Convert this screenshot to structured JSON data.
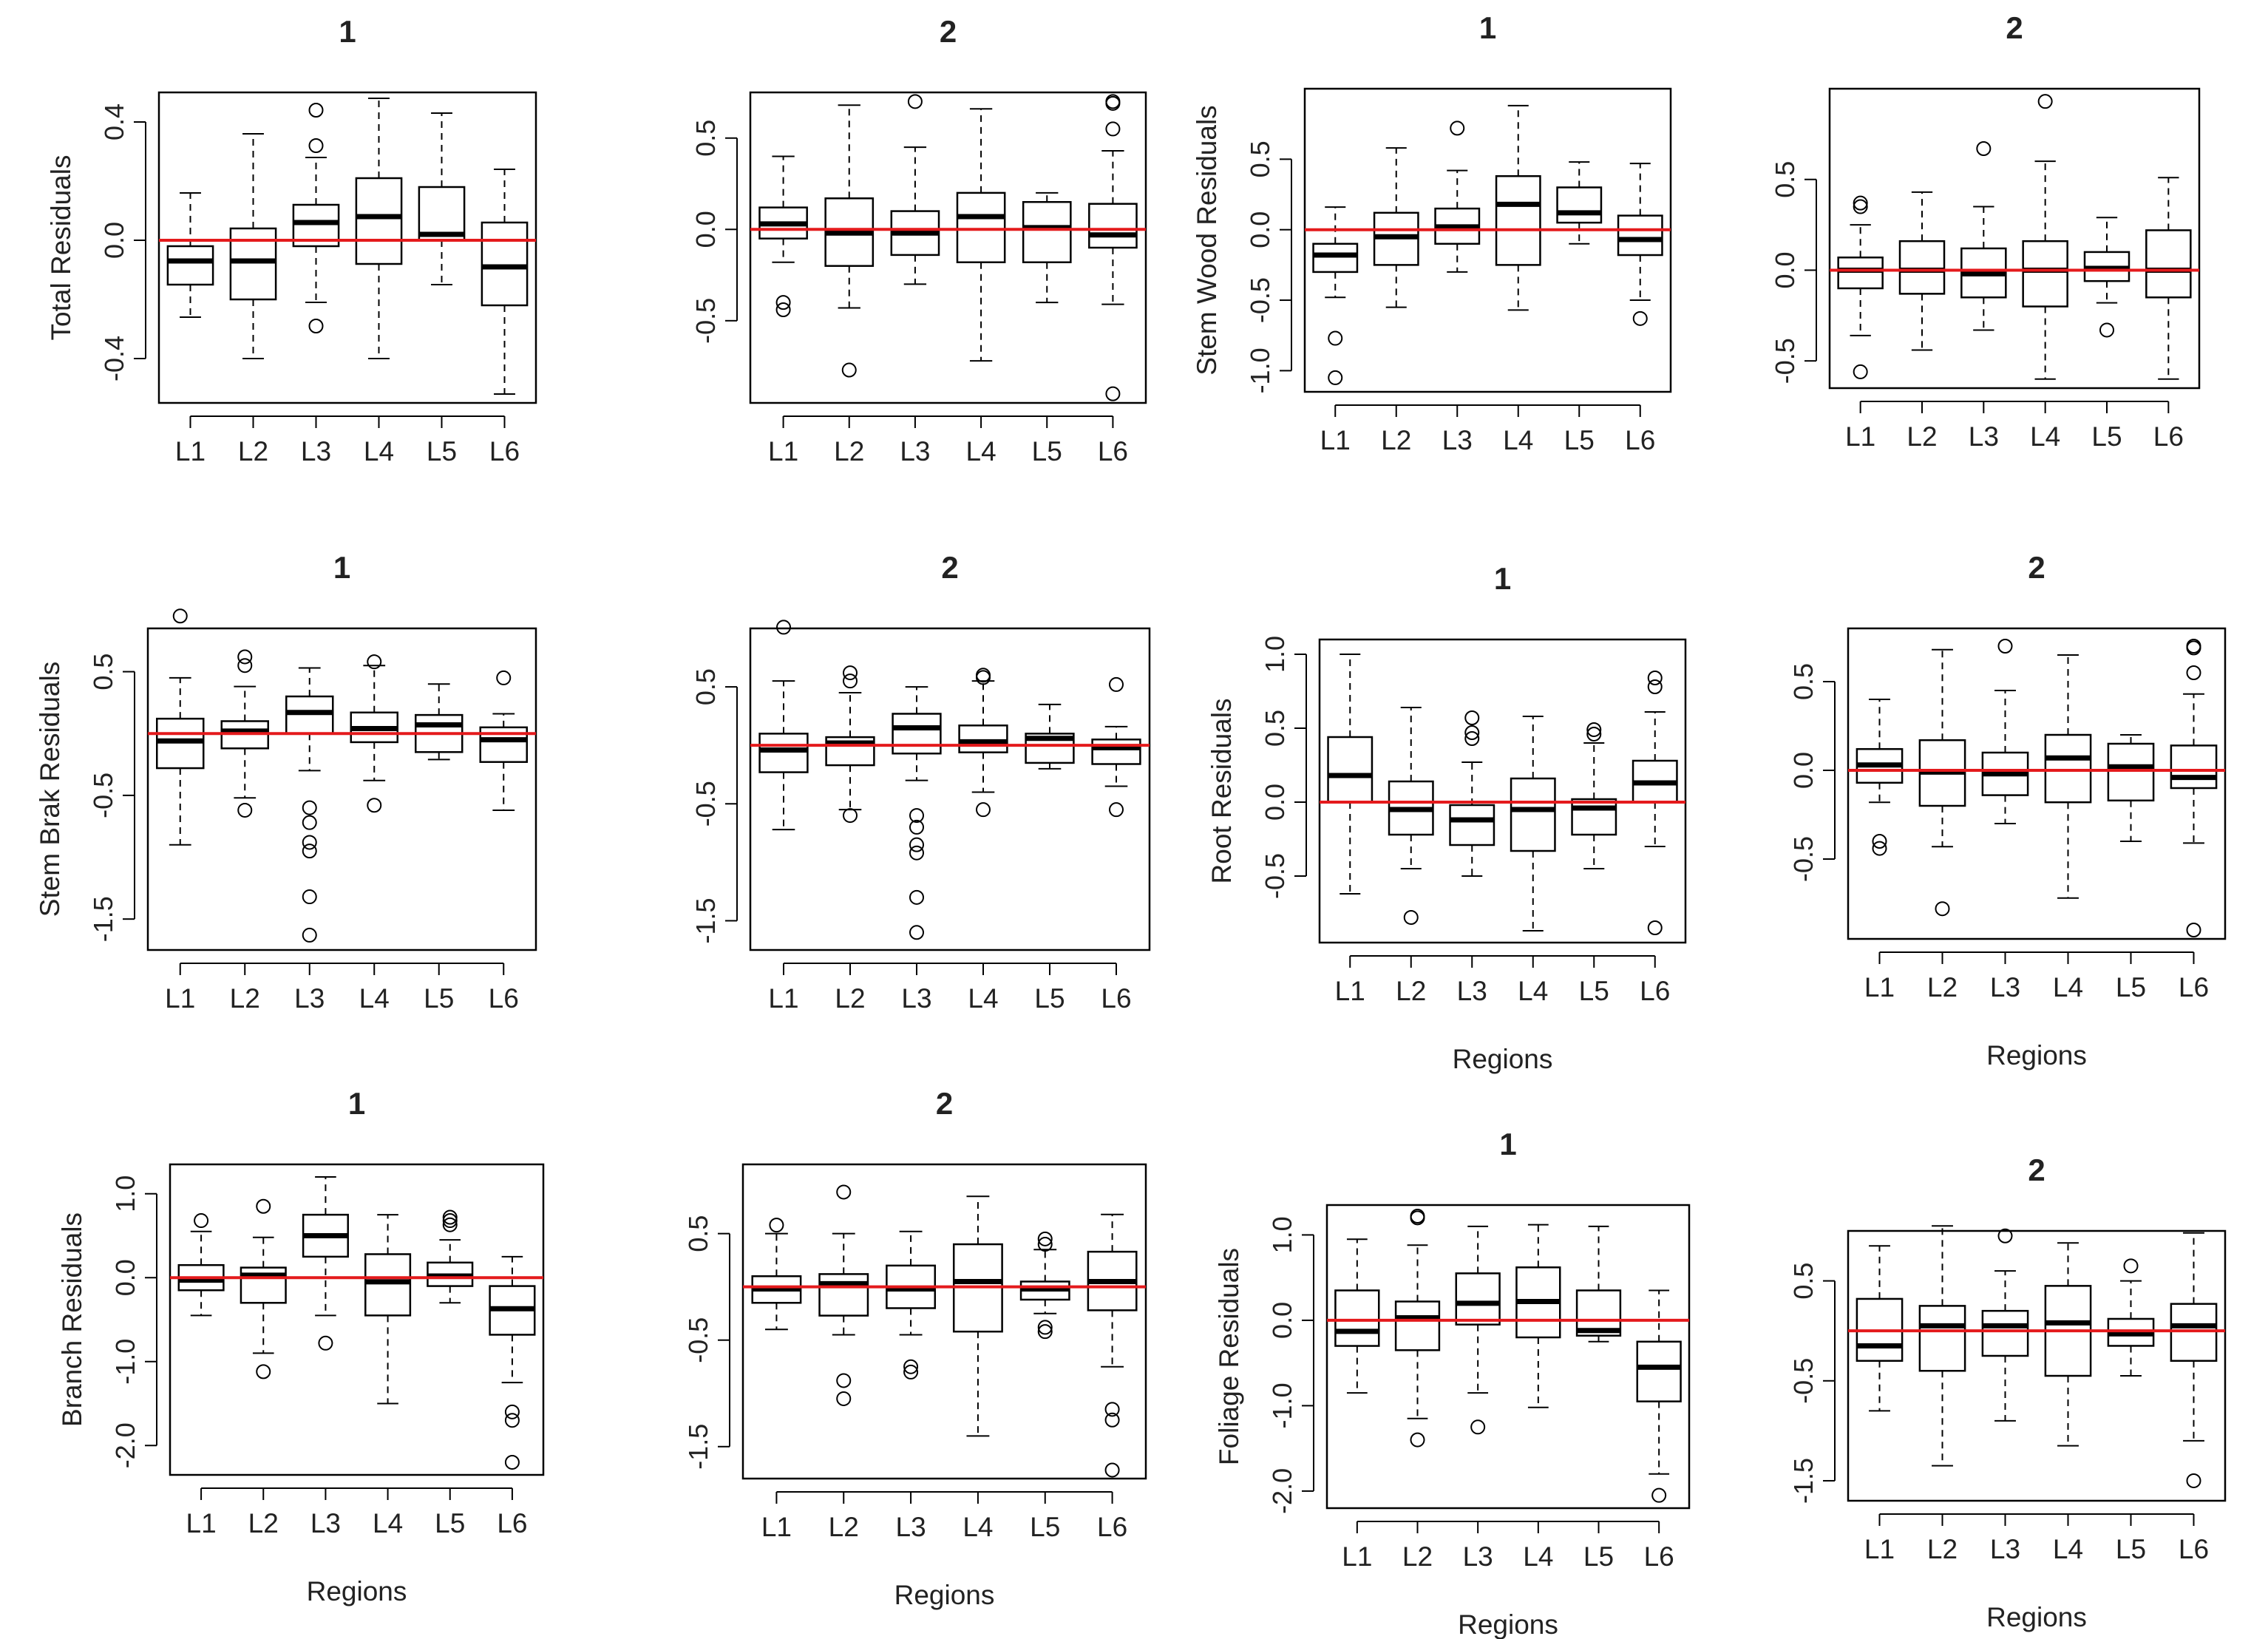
{
  "figure": {
    "background": "#ffffff",
    "box_color": "#000000",
    "reference_line_color": "#e41a1c"
  },
  "chart_data": [
    {
      "type": "boxplot",
      "title": "1",
      "xlabel": "",
      "ylabel": "Total Residuals",
      "ylim": [
        -0.55,
        0.5
      ],
      "yticks": [
        -0.4,
        0.0,
        0.4
      ],
      "yticklabels": [
        "-0.4",
        "0.0",
        "0.4"
      ],
      "reference_line": 0,
      "categories": [
        "L1",
        "L2",
        "L3",
        "L4",
        "L5",
        "L6"
      ],
      "boxes": [
        {
          "min": -0.26,
          "q1": -0.15,
          "median": -0.07,
          "q3": -0.02,
          "max": 0.16,
          "outliers": []
        },
        {
          "min": -0.4,
          "q1": -0.2,
          "median": -0.07,
          "q3": 0.04,
          "max": 0.36,
          "outliers": []
        },
        {
          "min": -0.21,
          "q1": -0.02,
          "median": 0.06,
          "q3": 0.12,
          "max": 0.28,
          "outliers": [
            -0.29,
            0.32,
            0.44
          ]
        },
        {
          "min": -0.4,
          "q1": -0.08,
          "median": 0.08,
          "q3": 0.21,
          "max": 0.48,
          "outliers": []
        },
        {
          "min": -0.15,
          "q1": 0.0,
          "median": 0.02,
          "q3": 0.18,
          "max": 0.43,
          "outliers": []
        },
        {
          "min": -0.52,
          "q1": -0.22,
          "median": -0.09,
          "q3": 0.06,
          "max": 0.24,
          "outliers": []
        }
      ]
    },
    {
      "type": "boxplot",
      "title": "2",
      "xlabel": "",
      "ylabel": "",
      "ylim": [
        -0.95,
        0.75
      ],
      "yticks": [
        -0.5,
        0.0,
        0.5
      ],
      "yticklabels": [
        "-0.5",
        "0.0",
        "0.5"
      ],
      "reference_line": 0,
      "categories": [
        "L1",
        "L2",
        "L3",
        "L4",
        "L5",
        "L6"
      ],
      "boxes": [
        {
          "min": -0.18,
          "q1": -0.05,
          "median": 0.03,
          "q3": 0.12,
          "max": 0.4,
          "outliers": [
            -0.4,
            -0.44
          ]
        },
        {
          "min": -0.43,
          "q1": -0.2,
          "median": -0.02,
          "q3": 0.17,
          "max": 0.68,
          "outliers": [
            -0.77
          ]
        },
        {
          "min": -0.3,
          "q1": -0.14,
          "median": -0.02,
          "q3": 0.1,
          "max": 0.45,
          "outliers": [
            0.7
          ]
        },
        {
          "min": -0.72,
          "q1": -0.18,
          "median": 0.07,
          "q3": 0.2,
          "max": 0.66,
          "outliers": []
        },
        {
          "min": -0.4,
          "q1": -0.18,
          "median": 0.01,
          "q3": 0.15,
          "max": 0.2,
          "outliers": []
        },
        {
          "min": -0.41,
          "q1": -0.1,
          "median": -0.03,
          "q3": 0.14,
          "max": 0.43,
          "outliers": [
            -0.9,
            0.55,
            0.69,
            0.7
          ]
        }
      ]
    },
    {
      "type": "boxplot",
      "title": "1",
      "xlabel": "",
      "ylabel": "Stem Wood Residuals",
      "ylim": [
        -1.15,
        1.0
      ],
      "yticks": [
        -1.0,
        -0.5,
        0.0,
        0.5
      ],
      "yticklabels": [
        "-1.0",
        "-0.5",
        "0.0",
        "0.5"
      ],
      "reference_line": 0,
      "categories": [
        "L1",
        "L2",
        "L3",
        "L4",
        "L5",
        "L6"
      ],
      "boxes": [
        {
          "min": -0.48,
          "q1": -0.3,
          "median": -0.18,
          "q3": -0.1,
          "max": 0.16,
          "outliers": [
            -0.77,
            -1.05
          ]
        },
        {
          "min": -0.55,
          "q1": -0.25,
          "median": -0.05,
          "q3": 0.12,
          "max": 0.58,
          "outliers": []
        },
        {
          "min": -0.3,
          "q1": -0.1,
          "median": 0.02,
          "q3": 0.15,
          "max": 0.42,
          "outliers": [
            0.72
          ]
        },
        {
          "min": -0.57,
          "q1": -0.25,
          "median": 0.18,
          "q3": 0.38,
          "max": 0.88,
          "outliers": []
        },
        {
          "min": -0.1,
          "q1": 0.05,
          "median": 0.12,
          "q3": 0.3,
          "max": 0.48,
          "outliers": []
        },
        {
          "min": -0.5,
          "q1": -0.18,
          "median": -0.07,
          "q3": 0.1,
          "max": 0.47,
          "outliers": [
            -0.63
          ]
        }
      ]
    },
    {
      "type": "boxplot",
      "title": "2",
      "xlabel": "",
      "ylabel": "",
      "ylim": [
        -0.65,
        1.0
      ],
      "yticks": [
        -0.5,
        0.0,
        0.5
      ],
      "yticklabels": [
        "-0.5",
        "0.0",
        "0.5"
      ],
      "reference_line": 0,
      "categories": [
        "L1",
        "L2",
        "L3",
        "L4",
        "L5",
        "L6"
      ],
      "boxes": [
        {
          "min": -0.36,
          "q1": -0.1,
          "median": 0.0,
          "q3": 0.07,
          "max": 0.25,
          "outliers": [
            -0.56,
            0.35,
            0.37
          ]
        },
        {
          "min": -0.44,
          "q1": -0.13,
          "median": 0.0,
          "q3": 0.16,
          "max": 0.43,
          "outliers": []
        },
        {
          "min": -0.33,
          "q1": -0.15,
          "median": -0.02,
          "q3": 0.12,
          "max": 0.35,
          "outliers": [
            0.67
          ]
        },
        {
          "min": -0.6,
          "q1": -0.2,
          "median": 0.0,
          "q3": 0.16,
          "max": 0.6,
          "outliers": [
            0.93
          ]
        },
        {
          "min": -0.18,
          "q1": -0.06,
          "median": 0.01,
          "q3": 0.1,
          "max": 0.29,
          "outliers": [
            -0.33
          ]
        },
        {
          "min": -0.6,
          "q1": -0.15,
          "median": 0.0,
          "q3": 0.22,
          "max": 0.51,
          "outliers": []
        }
      ]
    },
    {
      "type": "boxplot",
      "title": "1",
      "xlabel": "",
      "ylabel": "Stem Brak Residuals",
      "ylim": [
        -1.75,
        0.85
      ],
      "yticks": [
        -1.5,
        -0.5,
        0.5
      ],
      "yticklabels": [
        "-1.5",
        "-0.5",
        "0.5"
      ],
      "reference_line": 0,
      "categories": [
        "L1",
        "L2",
        "L3",
        "L4",
        "L5",
        "L6"
      ],
      "boxes": [
        {
          "min": -0.9,
          "q1": -0.28,
          "median": -0.06,
          "q3": 0.12,
          "max": 0.45,
          "outliers": [
            0.95
          ]
        },
        {
          "min": -0.52,
          "q1": -0.12,
          "median": 0.02,
          "q3": 0.1,
          "max": 0.38,
          "outliers": [
            -0.62,
            0.55,
            0.62
          ]
        },
        {
          "min": -0.3,
          "q1": 0.0,
          "median": 0.17,
          "q3": 0.3,
          "max": 0.53,
          "outliers": [
            -0.6,
            -0.72,
            -0.88,
            -0.95,
            -1.32,
            -1.63
          ]
        },
        {
          "min": -0.38,
          "q1": -0.07,
          "median": 0.04,
          "q3": 0.17,
          "max": 0.55,
          "outliers": [
            -0.58,
            0.58
          ]
        },
        {
          "min": -0.21,
          "q1": -0.15,
          "median": 0.07,
          "q3": 0.15,
          "max": 0.4,
          "outliers": []
        },
        {
          "min": -0.62,
          "q1": -0.23,
          "median": -0.05,
          "q3": 0.05,
          "max": 0.16,
          "outliers": [
            0.45
          ]
        }
      ]
    },
    {
      "type": "boxplot",
      "title": "2",
      "xlabel": "",
      "ylabel": "",
      "ylim": [
        -1.75,
        1.0
      ],
      "yticks": [
        -1.5,
        -0.5,
        0.5
      ],
      "yticklabels": [
        "-1.5",
        "-0.5",
        "0.5"
      ],
      "reference_line": 0,
      "categories": [
        "L1",
        "L2",
        "L3",
        "L4",
        "L5",
        "L6"
      ],
      "boxes": [
        {
          "min": -0.72,
          "q1": -0.23,
          "median": -0.04,
          "q3": 0.1,
          "max": 0.55,
          "outliers": [
            1.01
          ]
        },
        {
          "min": -0.55,
          "q1": -0.17,
          "median": 0.02,
          "q3": 0.07,
          "max": 0.45,
          "outliers": [
            -0.6,
            0.55,
            0.62
          ]
        },
        {
          "min": -0.3,
          "q1": -0.07,
          "median": 0.15,
          "q3": 0.27,
          "max": 0.5,
          "outliers": [
            -0.6,
            -0.7,
            -0.85,
            -0.92,
            -1.3,
            -1.6
          ]
        },
        {
          "min": -0.4,
          "q1": -0.06,
          "median": 0.03,
          "q3": 0.17,
          "max": 0.55,
          "outliers": [
            -0.55,
            0.58,
            0.6
          ]
        },
        {
          "min": -0.2,
          "q1": -0.15,
          "median": 0.06,
          "q3": 0.1,
          "max": 0.35,
          "outliers": []
        },
        {
          "min": -0.35,
          "q1": -0.16,
          "median": -0.02,
          "q3": 0.05,
          "max": 0.16,
          "outliers": [
            -0.55,
            0.52
          ]
        }
      ]
    },
    {
      "type": "boxplot",
      "title": "1",
      "xlabel": "Regions",
      "ylabel": "Root Residuals",
      "ylim": [
        -0.95,
        1.1
      ],
      "yticks": [
        -0.5,
        0.0,
        0.5,
        1.0
      ],
      "yticklabels": [
        "-0.5",
        "0.0",
        "0.5",
        "1.0"
      ],
      "reference_line": 0,
      "categories": [
        "L1",
        "L2",
        "L3",
        "L4",
        "L5",
        "L6"
      ],
      "boxes": [
        {
          "min": -0.62,
          "q1": 0.0,
          "median": 0.18,
          "q3": 0.44,
          "max": 1.0,
          "outliers": []
        },
        {
          "min": -0.45,
          "q1": -0.22,
          "median": -0.05,
          "q3": 0.14,
          "max": 0.64,
          "outliers": [
            -0.78
          ]
        },
        {
          "min": -0.5,
          "q1": -0.29,
          "median": -0.12,
          "q3": -0.02,
          "max": 0.27,
          "outliers": [
            0.43,
            0.47,
            0.57
          ]
        },
        {
          "min": -0.87,
          "q1": -0.33,
          "median": -0.05,
          "q3": 0.16,
          "max": 0.58,
          "outliers": []
        },
        {
          "min": -0.45,
          "q1": -0.22,
          "median": -0.04,
          "q3": 0.02,
          "max": 0.4,
          "outliers": [
            0.46,
            0.49
          ]
        },
        {
          "min": -0.3,
          "q1": 0.0,
          "median": 0.13,
          "q3": 0.28,
          "max": 0.61,
          "outliers": [
            -0.85,
            0.78,
            0.84
          ]
        }
      ]
    },
    {
      "type": "boxplot",
      "title": "2",
      "xlabel": "Regions",
      "ylabel": "",
      "ylim": [
        -0.95,
        0.8
      ],
      "yticks": [
        -0.5,
        0.0,
        0.5
      ],
      "yticklabels": [
        "-0.5",
        "0.0",
        "0.5"
      ],
      "reference_line": 0,
      "categories": [
        "L1",
        "L2",
        "L3",
        "L4",
        "L5",
        "L6"
      ],
      "boxes": [
        {
          "min": -0.18,
          "q1": -0.07,
          "median": 0.03,
          "q3": 0.12,
          "max": 0.4,
          "outliers": [
            -0.4,
            -0.44
          ]
        },
        {
          "min": -0.43,
          "q1": -0.2,
          "median": -0.01,
          "q3": 0.17,
          "max": 0.68,
          "outliers": [
            -0.78
          ]
        },
        {
          "min": -0.3,
          "q1": -0.14,
          "median": -0.02,
          "q3": 0.1,
          "max": 0.45,
          "outliers": [
            0.7
          ]
        },
        {
          "min": -0.72,
          "q1": -0.18,
          "median": 0.07,
          "q3": 0.2,
          "max": 0.65,
          "outliers": []
        },
        {
          "min": -0.4,
          "q1": -0.17,
          "median": 0.02,
          "q3": 0.15,
          "max": 0.2,
          "outliers": []
        },
        {
          "min": -0.41,
          "q1": -0.1,
          "median": -0.04,
          "q3": 0.14,
          "max": 0.43,
          "outliers": [
            -0.9,
            0.55,
            0.69,
            0.7
          ]
        }
      ]
    },
    {
      "type": "boxplot",
      "title": "1",
      "xlabel": "Regions",
      "ylabel": "Branch Residuals",
      "ylim": [
        -2.35,
        1.35
      ],
      "yticks": [
        -2.0,
        -1.0,
        0.0,
        1.0
      ],
      "yticklabels": [
        "-2.0",
        "-1.0",
        "0.0",
        "1.0"
      ],
      "reference_line": 0,
      "categories": [
        "L1",
        "L2",
        "L3",
        "L4",
        "L5",
        "L6"
      ],
      "boxes": [
        {
          "min": -0.45,
          "q1": -0.15,
          "median": -0.03,
          "q3": 0.15,
          "max": 0.55,
          "outliers": [
            0.68
          ]
        },
        {
          "min": -0.9,
          "q1": -0.3,
          "median": 0.03,
          "q3": 0.12,
          "max": 0.48,
          "outliers": [
            -1.12,
            0.85
          ]
        },
        {
          "min": -0.45,
          "q1": 0.25,
          "median": 0.5,
          "q3": 0.75,
          "max": 1.2,
          "outliers": [
            -0.78
          ]
        },
        {
          "min": -1.5,
          "q1": -0.45,
          "median": -0.05,
          "q3": 0.28,
          "max": 0.75,
          "outliers": []
        },
        {
          "min": -0.3,
          "q1": -0.1,
          "median": 0.02,
          "q3": 0.18,
          "max": 0.45,
          "outliers": [
            0.63,
            0.68,
            0.72
          ]
        },
        {
          "min": -1.25,
          "q1": -0.68,
          "median": -0.37,
          "q3": -0.1,
          "max": 0.25,
          "outliers": [
            -1.6,
            -1.7,
            -2.2
          ]
        }
      ]
    },
    {
      "type": "boxplot",
      "title": "2",
      "xlabel": "Regions",
      "ylabel": "",
      "ylim": [
        -1.8,
        1.15
      ],
      "yticks": [
        -1.5,
        -0.5,
        0.5
      ],
      "yticklabels": [
        "-1.5",
        "-0.5",
        "0.5"
      ],
      "reference_line": 0,
      "categories": [
        "L1",
        "L2",
        "L3",
        "L4",
        "L5",
        "L6"
      ],
      "boxes": [
        {
          "min": -0.4,
          "q1": -0.15,
          "median": -0.02,
          "q3": 0.1,
          "max": 0.5,
          "outliers": [
            0.58
          ]
        },
        {
          "min": -0.45,
          "q1": -0.27,
          "median": 0.03,
          "q3": 0.12,
          "max": 0.5,
          "outliers": [
            -0.88,
            -1.05,
            0.89
          ]
        },
        {
          "min": -0.45,
          "q1": -0.2,
          "median": -0.02,
          "q3": 0.2,
          "max": 0.52,
          "outliers": [
            -0.75,
            -0.8
          ]
        },
        {
          "min": -1.4,
          "q1": -0.42,
          "median": 0.05,
          "q3": 0.4,
          "max": 0.85,
          "outliers": []
        },
        {
          "min": -0.25,
          "q1": -0.12,
          "median": -0.02,
          "q3": 0.05,
          "max": 0.35,
          "outliers": [
            -0.38,
            -0.42,
            0.4,
            0.45
          ]
        },
        {
          "min": -0.75,
          "q1": -0.22,
          "median": 0.05,
          "q3": 0.33,
          "max": 0.68,
          "outliers": [
            -1.15,
            -1.25,
            -1.72
          ]
        }
      ]
    },
    {
      "type": "boxplot",
      "title": "1",
      "xlabel": "Regions",
      "ylabel": "Foliage Residuals",
      "ylim": [
        -2.2,
        1.35
      ],
      "yticks": [
        -2.0,
        -1.0,
        0.0,
        1.0
      ],
      "yticklabels": [
        "-2.0",
        "-1.0",
        "0.0",
        "1.0"
      ],
      "reference_line": 0,
      "categories": [
        "L1",
        "L2",
        "L3",
        "L4",
        "L5",
        "L6"
      ],
      "boxes": [
        {
          "min": -0.85,
          "q1": -0.3,
          "median": -0.13,
          "q3": 0.35,
          "max": 0.95,
          "outliers": []
        },
        {
          "min": -1.15,
          "q1": -0.35,
          "median": 0.03,
          "q3": 0.22,
          "max": 0.88,
          "outliers": [
            -1.4,
            1.2,
            1.22
          ]
        },
        {
          "min": -0.85,
          "q1": -0.05,
          "median": 0.2,
          "q3": 0.55,
          "max": 1.1,
          "outliers": [
            -1.25
          ]
        },
        {
          "min": -1.02,
          "q1": -0.2,
          "median": 0.22,
          "q3": 0.62,
          "max": 1.12,
          "outliers": []
        },
        {
          "min": -0.25,
          "q1": -0.18,
          "median": -0.12,
          "q3": 0.35,
          "max": 1.1,
          "outliers": []
        },
        {
          "min": -1.8,
          "q1": -0.95,
          "median": -0.55,
          "q3": -0.25,
          "max": 0.35,
          "outliers": [
            -2.05
          ]
        }
      ]
    },
    {
      "type": "boxplot",
      "title": "2",
      "xlabel": "Regions",
      "ylabel": "",
      "ylim": [
        -1.7,
        1.0
      ],
      "yticks": [
        -1.5,
        -0.5,
        0.5
      ],
      "yticklabels": [
        "-1.5",
        "-0.5",
        "0.5"
      ],
      "reference_line": 0,
      "categories": [
        "L1",
        "L2",
        "L3",
        "L4",
        "L5",
        "L6"
      ],
      "boxes": [
        {
          "min": -0.8,
          "q1": -0.3,
          "median": -0.15,
          "q3": 0.32,
          "max": 0.85,
          "outliers": []
        },
        {
          "min": -1.35,
          "q1": -0.4,
          "median": 0.05,
          "q3": 0.25,
          "max": 1.05,
          "outliers": []
        },
        {
          "min": -0.9,
          "q1": -0.25,
          "median": 0.05,
          "q3": 0.2,
          "max": 0.6,
          "outliers": [
            0.95
          ]
        },
        {
          "min": -1.15,
          "q1": -0.45,
          "median": 0.08,
          "q3": 0.45,
          "max": 0.88,
          "outliers": []
        },
        {
          "min": -0.45,
          "q1": -0.15,
          "median": -0.03,
          "q3": 0.12,
          "max": 0.5,
          "outliers": [
            0.65
          ]
        },
        {
          "min": -1.1,
          "q1": -0.3,
          "median": 0.05,
          "q3": 0.27,
          "max": 0.98,
          "outliers": [
            -1.5
          ]
        }
      ]
    }
  ]
}
